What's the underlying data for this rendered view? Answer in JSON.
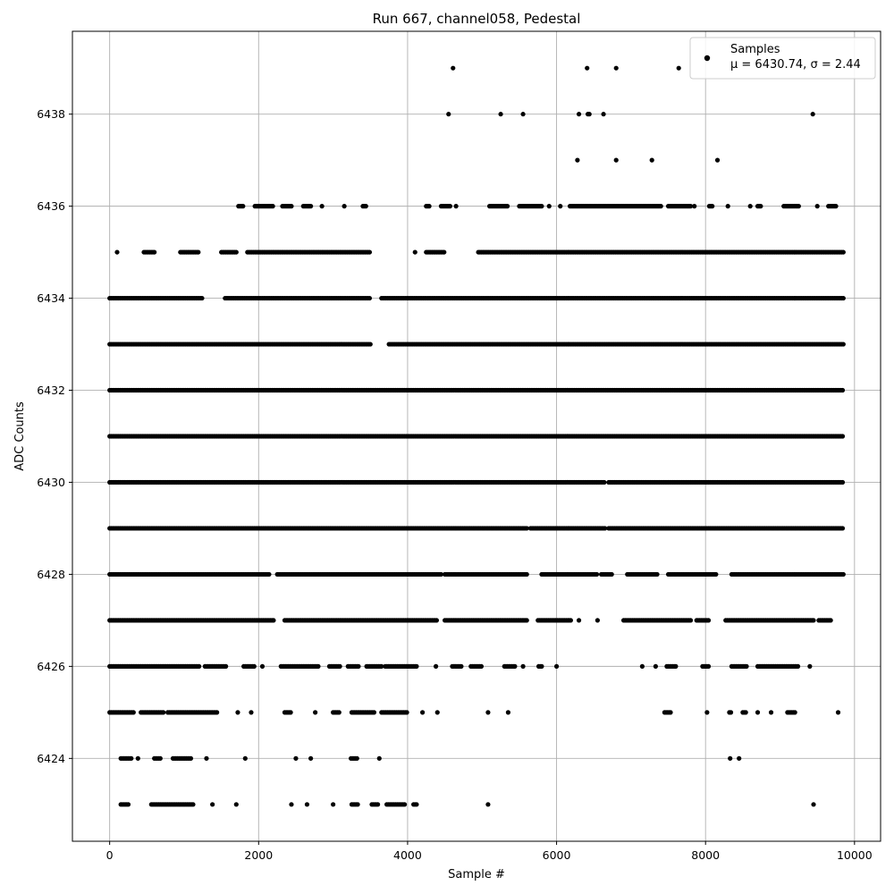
{
  "chart_data": {
    "type": "scatter",
    "title": "Run 667, channel058, Pedestal",
    "xlabel": "Sample #",
    "ylabel": "ADC Counts",
    "xlim": [
      -500,
      10350
    ],
    "ylim": [
      6422.2,
      6439.8
    ],
    "xticks": [
      0,
      2000,
      4000,
      6000,
      8000,
      10000
    ],
    "yticks": [
      6424,
      6426,
      6428,
      6430,
      6432,
      6434,
      6436,
      6438
    ],
    "grid": true,
    "legend_position": "top-right",
    "marker_color": "#000000",
    "series": [
      {
        "name": "Samples",
        "legend_stats": "μ = 6430.74, σ = 2.44",
        "x_range": [
          0,
          9850
        ],
        "level_coverage": [
          {
            "y": 6423,
            "segments": [
              [
                150,
                260
              ],
              [
                560,
                1120
              ],
              [
                1380,
                1380
              ],
              [
                1700,
                1700
              ],
              [
                2440,
                2440
              ],
              [
                2650,
                2650
              ],
              [
                3000,
                3000
              ],
              [
                3250,
                3330
              ],
              [
                3520,
                3600
              ],
              [
                3720,
                3960
              ],
              [
                4080,
                4130
              ],
              [
                5080,
                5080
              ],
              [
                9450,
                9450
              ]
            ]
          },
          {
            "y": 6424,
            "segments": [
              [
                150,
                300
              ],
              [
                380,
                380
              ],
              [
                600,
                680
              ],
              [
                850,
                1100
              ],
              [
                1300,
                1300
              ],
              [
                1820,
                1820
              ],
              [
                2500,
                2500
              ],
              [
                2700,
                2700
              ],
              [
                3240,
                3320
              ],
              [
                3620,
                3620
              ],
              [
                8330,
                8330
              ],
              [
                8450,
                8450
              ]
            ]
          },
          {
            "y": 6425,
            "segments": [
              [
                0,
                320
              ],
              [
                420,
                720
              ],
              [
                780,
                1450
              ],
              [
                1720,
                1720
              ],
              [
                1900,
                1900
              ],
              [
                2350,
                2430
              ],
              [
                2760,
                2760
              ],
              [
                3000,
                3080
              ],
              [
                3250,
                3550
              ],
              [
                3650,
                4000
              ],
              [
                4200,
                4200
              ],
              [
                4400,
                4400
              ],
              [
                5080,
                5080
              ],
              [
                5350,
                5350
              ],
              [
                7450,
                7530
              ],
              [
                8020,
                8020
              ],
              [
                8320,
                8350
              ],
              [
                8500,
                8550
              ],
              [
                8700,
                8700
              ],
              [
                8880,
                8880
              ],
              [
                9100,
                9200
              ],
              [
                9780,
                9780
              ]
            ]
          },
          {
            "y": 6426,
            "segments": [
              [
                0,
                1200
              ],
              [
                1280,
                1560
              ],
              [
                1800,
                1950
              ],
              [
                2050,
                2050
              ],
              [
                2300,
                2800
              ],
              [
                2950,
                3100
              ],
              [
                3200,
                3350
              ],
              [
                3450,
                3650
              ],
              [
                3700,
                4130
              ],
              [
                4380,
                4380
              ],
              [
                4600,
                4730
              ],
              [
                4850,
                5000
              ],
              [
                5300,
                5450
              ],
              [
                5550,
                5550
              ],
              [
                5760,
                5800
              ],
              [
                6000,
                6000
              ],
              [
                7150,
                7150
              ],
              [
                7330,
                7330
              ],
              [
                7480,
                7600
              ],
              [
                7960,
                8050
              ],
              [
                8350,
                8550
              ],
              [
                8700,
                9250
              ],
              [
                9400,
                9400
              ]
            ]
          },
          {
            "y": 6427,
            "segments": [
              [
                0,
                2200
              ],
              [
                2350,
                4400
              ],
              [
                4500,
                5600
              ],
              [
                5750,
                6200
              ],
              [
                6300,
                6300
              ],
              [
                6550,
                6550
              ],
              [
                6900,
                7800
              ],
              [
                7880,
                8050
              ],
              [
                8270,
                9450
              ],
              [
                9520,
                9680
              ]
            ]
          },
          {
            "y": 6428,
            "segments": [
              [
                0,
                2150
              ],
              [
                2250,
                4450
              ],
              [
                4500,
                5600
              ],
              [
                5800,
                6550
              ],
              [
                6600,
                6750
              ],
              [
                6950,
                7350
              ],
              [
                7500,
                8150
              ],
              [
                8350,
                9850
              ]
            ]
          },
          {
            "y": 6429,
            "segments": [
              [
                0,
                5600
              ],
              [
                5650,
                6650
              ],
              [
                6700,
                9850
              ]
            ]
          },
          {
            "y": 6430,
            "segments": [
              [
                0,
                6650
              ],
              [
                6700,
                9850
              ]
            ]
          },
          {
            "y": 6431,
            "segments": [
              [
                0,
                9850
              ]
            ]
          },
          {
            "y": 6432,
            "segments": [
              [
                0,
                9850
              ]
            ]
          },
          {
            "y": 6433,
            "segments": [
              [
                0,
                3500
              ],
              [
                3750,
                9850
              ]
            ]
          },
          {
            "y": 6434,
            "segments": [
              [
                0,
                1250
              ],
              [
                1550,
                3500
              ],
              [
                3650,
                9850
              ]
            ]
          },
          {
            "y": 6435,
            "segments": [
              [
                100,
                100
              ],
              [
                460,
                600
              ],
              [
                950,
                1200
              ],
              [
                1500,
                1700
              ],
              [
                1850,
                3500
              ],
              [
                4100,
                4100
              ],
              [
                4250,
                4500
              ],
              [
                4950,
                9850
              ]
            ]
          },
          {
            "y": 6436,
            "segments": [
              [
                1730,
                1800
              ],
              [
                1950,
                2200
              ],
              [
                2320,
                2450
              ],
              [
                2600,
                2700
              ],
              [
                2850,
                2850
              ],
              [
                3150,
                3150
              ],
              [
                3400,
                3450
              ],
              [
                4250,
                4300
              ],
              [
                4450,
                4580
              ],
              [
                4650,
                4650
              ],
              [
                5100,
                5350
              ],
              [
                5500,
                5800
              ],
              [
                5900,
                5900
              ],
              [
                6050,
                6050
              ],
              [
                6180,
                7400
              ],
              [
                7500,
                7800
              ],
              [
                7850,
                7850
              ],
              [
                8050,
                8100
              ],
              [
                8300,
                8300
              ],
              [
                8600,
                8600
              ],
              [
                8700,
                8750
              ],
              [
                9050,
                9250
              ],
              [
                9500,
                9500
              ],
              [
                9650,
                9750
              ]
            ]
          },
          {
            "y": 6437,
            "segments": [
              [
                6280,
                6280
              ],
              [
                6800,
                6800
              ],
              [
                7280,
                7280
              ],
              [
                8160,
                8160
              ]
            ]
          },
          {
            "y": 6438,
            "segments": [
              [
                4550,
                4550
              ],
              [
                5250,
                5250
              ],
              [
                5550,
                5550
              ],
              [
                6300,
                6300
              ],
              [
                6420,
                6450
              ],
              [
                6630,
                6630
              ],
              [
                9440,
                9440
              ]
            ]
          },
          {
            "y": 6439,
            "segments": [
              [
                4610,
                4610
              ],
              [
                6410,
                6410
              ],
              [
                6800,
                6800
              ],
              [
                7640,
                7640
              ]
            ]
          }
        ]
      }
    ]
  },
  "legend": {
    "label": "Samples",
    "stats": "μ = 6430.74, σ = 2.44"
  }
}
